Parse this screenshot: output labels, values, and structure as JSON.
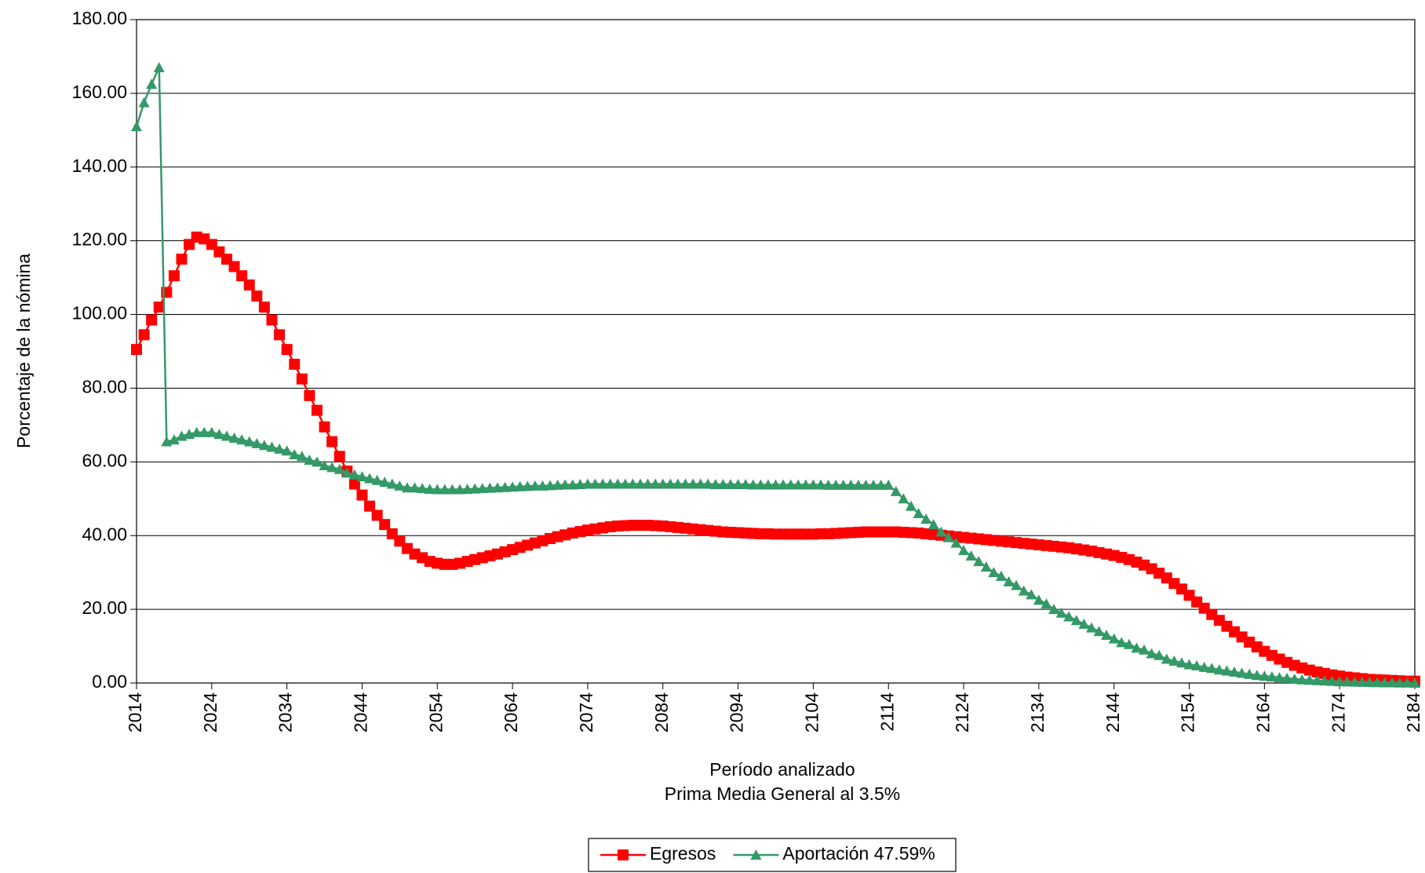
{
  "chart_data": {
    "type": "line",
    "xlabel": "Período analizado",
    "subtitle": "Prima Media General al 3.5%",
    "ylabel": "Porcentaje de la nómina",
    "x": [
      2014,
      2015,
      2016,
      2017,
      2018,
      2019,
      2020,
      2021,
      2022,
      2023,
      2024,
      2025,
      2026,
      2027,
      2028,
      2029,
      2030,
      2031,
      2032,
      2033,
      2034,
      2035,
      2036,
      2037,
      2038,
      2039,
      2040,
      2041,
      2042,
      2043,
      2044,
      2045,
      2046,
      2047,
      2048,
      2049,
      2050,
      2051,
      2052,
      2053,
      2054,
      2055,
      2056,
      2057,
      2058,
      2059,
      2060,
      2061,
      2062,
      2063,
      2064,
      2065,
      2066,
      2067,
      2068,
      2069,
      2070,
      2071,
      2072,
      2073,
      2074,
      2075,
      2076,
      2077,
      2078,
      2079,
      2080,
      2081,
      2082,
      2083,
      2084,
      2085,
      2086,
      2087,
      2088,
      2089,
      2090,
      2091,
      2092,
      2093,
      2094,
      2095,
      2096,
      2097,
      2098,
      2099,
      2100,
      2101,
      2102,
      2103,
      2104,
      2105,
      2106,
      2107,
      2108,
      2109,
      2110,
      2111,
      2112,
      2113,
      2114,
      2115,
      2116,
      2117,
      2118,
      2119,
      2120,
      2121,
      2122,
      2123,
      2124,
      2125,
      2126,
      2127,
      2128,
      2129,
      2130,
      2131,
      2132,
      2133,
      2134,
      2135,
      2136,
      2137,
      2138,
      2139,
      2140,
      2141,
      2142,
      2143,
      2144,
      2145,
      2146,
      2147,
      2148,
      2149,
      2150,
      2151,
      2152,
      2153,
      2154,
      2155,
      2156,
      2157,
      2158,
      2159,
      2160,
      2161,
      2162,
      2163,
      2164,
      2165,
      2166,
      2167,
      2168,
      2169,
      2170,
      2171,
      2172,
      2173,
      2174,
      2175,
      2176,
      2177,
      2178,
      2179,
      2180,
      2181,
      2182,
      2183,
      2184
    ],
    "series": [
      {
        "name": "Egresos",
        "color": "#ff0000",
        "marker": "square",
        "values": [
          90.5,
          94.5,
          98.5,
          102,
          106,
          110.5,
          115,
          119,
          121,
          120.5,
          119,
          117,
          115,
          113,
          110.5,
          108,
          105,
          102,
          98.5,
          94.5,
          90.5,
          86.5,
          82.5,
          78,
          74,
          69.5,
          65.5,
          61.5,
          57.5,
          54,
          51,
          48,
          45.5,
          43,
          40.5,
          38.5,
          36.5,
          35,
          34,
          33,
          32.5,
          32.2,
          32.2,
          32.5,
          33,
          33.5,
          34,
          34.5,
          35,
          35.6,
          36.2,
          36.8,
          37.4,
          38,
          38.6,
          39.2,
          39.7,
          40.2,
          40.7,
          41.1,
          41.5,
          41.8,
          42.1,
          42.4,
          42.6,
          42.7,
          42.8,
          42.8,
          42.8,
          42.7,
          42.6,
          42.4,
          42.2,
          42,
          41.8,
          41.6,
          41.4,
          41.2,
          41,
          40.9,
          40.8,
          40.7,
          40.6,
          40.5,
          40.5,
          40.4,
          40.4,
          40.4,
          40.4,
          40.4,
          40.4,
          40.5,
          40.5,
          40.6,
          40.7,
          40.8,
          40.9,
          41,
          41,
          41,
          41,
          41,
          40.9,
          40.8,
          40.7,
          40.5,
          40.3,
          40.1,
          39.9,
          39.7,
          39.5,
          39.3,
          39.1,
          38.9,
          38.7,
          38.5,
          38.3,
          38.1,
          37.9,
          37.7,
          37.5,
          37.3,
          37.1,
          36.9,
          36.7,
          36.4,
          36.1,
          35.8,
          35.4,
          35,
          34.6,
          34.1,
          33.5,
          32.8,
          32,
          31,
          29.8,
          28.5,
          27,
          25.5,
          23.8,
          22,
          20.3,
          18.6,
          17,
          15.4,
          13.9,
          12.5,
          11.1,
          9.8,
          8.6,
          7.5,
          6.5,
          5.6,
          4.8,
          4.1,
          3.5,
          3,
          2.6,
          2.2,
          1.9,
          1.6,
          1.4,
          1.2,
          1,
          0.9,
          0.8,
          0.7,
          0.6,
          0.5,
          0.5
        ]
      },
      {
        "name": "Aportación 47.59%",
        "color": "#339966",
        "marker": "triangle",
        "values": [
          151,
          157.5,
          162.5,
          167,
          65.5,
          66,
          67,
          67.5,
          68,
          68,
          68,
          67.5,
          67,
          66.5,
          66,
          65.5,
          65,
          64.5,
          64,
          63.5,
          63,
          62,
          61.5,
          60.5,
          60,
          59,
          58.5,
          58,
          57,
          56.5,
          56,
          55.5,
          55,
          54.5,
          54,
          53.5,
          53,
          53,
          52.8,
          52.6,
          52.5,
          52.5,
          52.5,
          52.5,
          52.6,
          52.7,
          52.8,
          52.9,
          53,
          53.1,
          53.2,
          53.3,
          53.4,
          53.5,
          53.5,
          53.6,
          53.7,
          53.8,
          53.8,
          53.9,
          54,
          54,
          54,
          54,
          54,
          54,
          54,
          54,
          54,
          54,
          54,
          54,
          54,
          54,
          54,
          54,
          54,
          53.9,
          53.9,
          53.9,
          53.9,
          53.9,
          53.8,
          53.8,
          53.8,
          53.8,
          53.8,
          53.8,
          53.8,
          53.8,
          53.8,
          53.8,
          53.7,
          53.7,
          53.7,
          53.7,
          53.7,
          53.7,
          53.7,
          53.7,
          53.7,
          52,
          50,
          48,
          46,
          44.5,
          43,
          41,
          39.5,
          38,
          36,
          34.5,
          33,
          31.5,
          30,
          29,
          27.5,
          26.5,
          25,
          24,
          22.5,
          21.5,
          20,
          19,
          18,
          17,
          16,
          15,
          14,
          13,
          12,
          11,
          10.5,
          9.5,
          9,
          8,
          7.5,
          6.5,
          6,
          5.5,
          5,
          4.7,
          4.3,
          4,
          3.6,
          3.3,
          3,
          2.7,
          2.4,
          2.1,
          1.9,
          1.7,
          1.5,
          1.3,
          1.1,
          0.9,
          0.8,
          0.7,
          0.6,
          0.5,
          0.4,
          0.35,
          0.3,
          0.25,
          0.2,
          0.15,
          0.1,
          0.1,
          0.05,
          0.05,
          0
        ]
      }
    ],
    "xlim": [
      2014,
      2184
    ],
    "xticks": [
      2014,
      2024,
      2034,
      2044,
      2054,
      2064,
      2074,
      2084,
      2094,
      2104,
      2114,
      2124,
      2134,
      2144,
      2154,
      2164,
      2174,
      2184
    ],
    "ylim": [
      0,
      180
    ],
    "yticks": [
      {
        "value": 0,
        "label": "0.00"
      },
      {
        "value": 20,
        "label": "20.00"
      },
      {
        "value": 40,
        "label": "40.00"
      },
      {
        "value": 60,
        "label": "60.00"
      },
      {
        "value": 80,
        "label": "80.00"
      },
      {
        "value": 100,
        "label": "100.00"
      },
      {
        "value": 120,
        "label": "120.00"
      },
      {
        "value": 140,
        "label": "140.00"
      },
      {
        "value": 160,
        "label": "160.00"
      },
      {
        "value": 180,
        "label": "180.00"
      }
    ],
    "grid": true,
    "legend": "bottom"
  }
}
